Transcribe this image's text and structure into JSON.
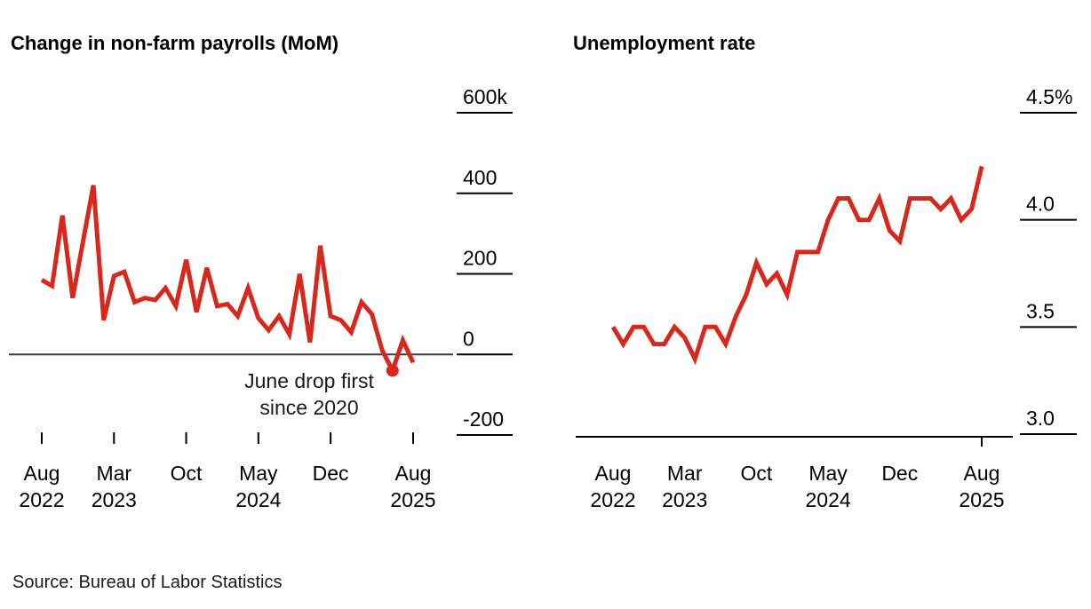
{
  "page": {
    "background": "#ffffff"
  },
  "accent_color": "#d8281e",
  "source": {
    "text": "Source: Bureau of Labor Statistics"
  },
  "chart_data": [
    {
      "type": "line",
      "title": "Change in non-farm payrolls (MoM)",
      "unit": "thousands of jobs, monthly change",
      "x_start": "2022-08",
      "x_end": "2025-08",
      "x_step": "month",
      "series": [
        {
          "name": "nonfarm-payrolls-change-k",
          "values": [
            185,
            170,
            345,
            140,
            280,
            420,
            85,
            195,
            205,
            130,
            140,
            135,
            165,
            120,
            235,
            105,
            215,
            120,
            125,
            95,
            165,
            90,
            60,
            95,
            50,
            200,
            30,
            270,
            95,
            85,
            55,
            130,
            100,
            10,
            -40,
            35,
            -20
          ]
        }
      ],
      "y_ticks": [
        {
          "v": 600,
          "label": "600k"
        },
        {
          "v": 400,
          "label": "400"
        },
        {
          "v": 200,
          "label": "200"
        },
        {
          "v": 0,
          "label": "0"
        },
        {
          "v": -200,
          "label": "-200"
        }
      ],
      "x_ticks": [
        {
          "m": 0,
          "l1": "Aug",
          "l2": "2022"
        },
        {
          "m": 7,
          "l1": "Mar",
          "l2": "2023"
        },
        {
          "m": 14,
          "l1": "Oct",
          "l2": ""
        },
        {
          "m": 21,
          "l1": "May",
          "l2": "2024"
        },
        {
          "m": 28,
          "l1": "Dec",
          "l2": ""
        },
        {
          "m": 36,
          "l1": "Aug",
          "l2": "2025"
        }
      ],
      "ylim": [
        -280,
        640
      ],
      "grid": false,
      "legend": "none",
      "line_color": "#d8281e",
      "zero_line": true,
      "annotation": {
        "lines": [
          "June drop first",
          "since 2020"
        ],
        "point_month": 34,
        "point_value": -40
      }
    },
    {
      "type": "line",
      "title": "Unemployment rate",
      "unit": "percent",
      "x_start": "2022-08",
      "x_end": "2025-08",
      "x_step": "month",
      "series": [
        {
          "name": "unemployment-rate-pct",
          "values": [
            3.5,
            3.42,
            3.5,
            3.5,
            3.42,
            3.42,
            3.5,
            3.45,
            3.35,
            3.5,
            3.5,
            3.42,
            3.55,
            3.65,
            3.8,
            3.7,
            3.75,
            3.65,
            3.85,
            3.85,
            3.85,
            4.0,
            4.1,
            4.1,
            4.0,
            4.0,
            4.1,
            3.95,
            3.9,
            4.1,
            4.1,
            4.1,
            4.05,
            4.1,
            4.0,
            4.05,
            4.25
          ]
        }
      ],
      "y_ticks": [
        {
          "v": 4.5,
          "label": "4.5%"
        },
        {
          "v": 4.0,
          "label": "4.0"
        },
        {
          "v": 3.5,
          "label": "3.5"
        },
        {
          "v": 3.0,
          "label": "3.0"
        }
      ],
      "x_ticks": [
        {
          "m": 0,
          "l1": "Aug",
          "l2": "2022"
        },
        {
          "m": 7,
          "l1": "Mar",
          "l2": "2023"
        },
        {
          "m": 14,
          "l1": "Oct",
          "l2": ""
        },
        {
          "m": 21,
          "l1": "May",
          "l2": "2024"
        },
        {
          "m": 28,
          "l1": "Dec",
          "l2": ""
        },
        {
          "m": 36,
          "l1": "Aug",
          "l2": "2025"
        }
      ],
      "ylim": [
        3.0,
        4.5
      ],
      "grid": false,
      "legend": "none",
      "line_color": "#d8281e",
      "zero_line": false,
      "annotation": null
    }
  ]
}
